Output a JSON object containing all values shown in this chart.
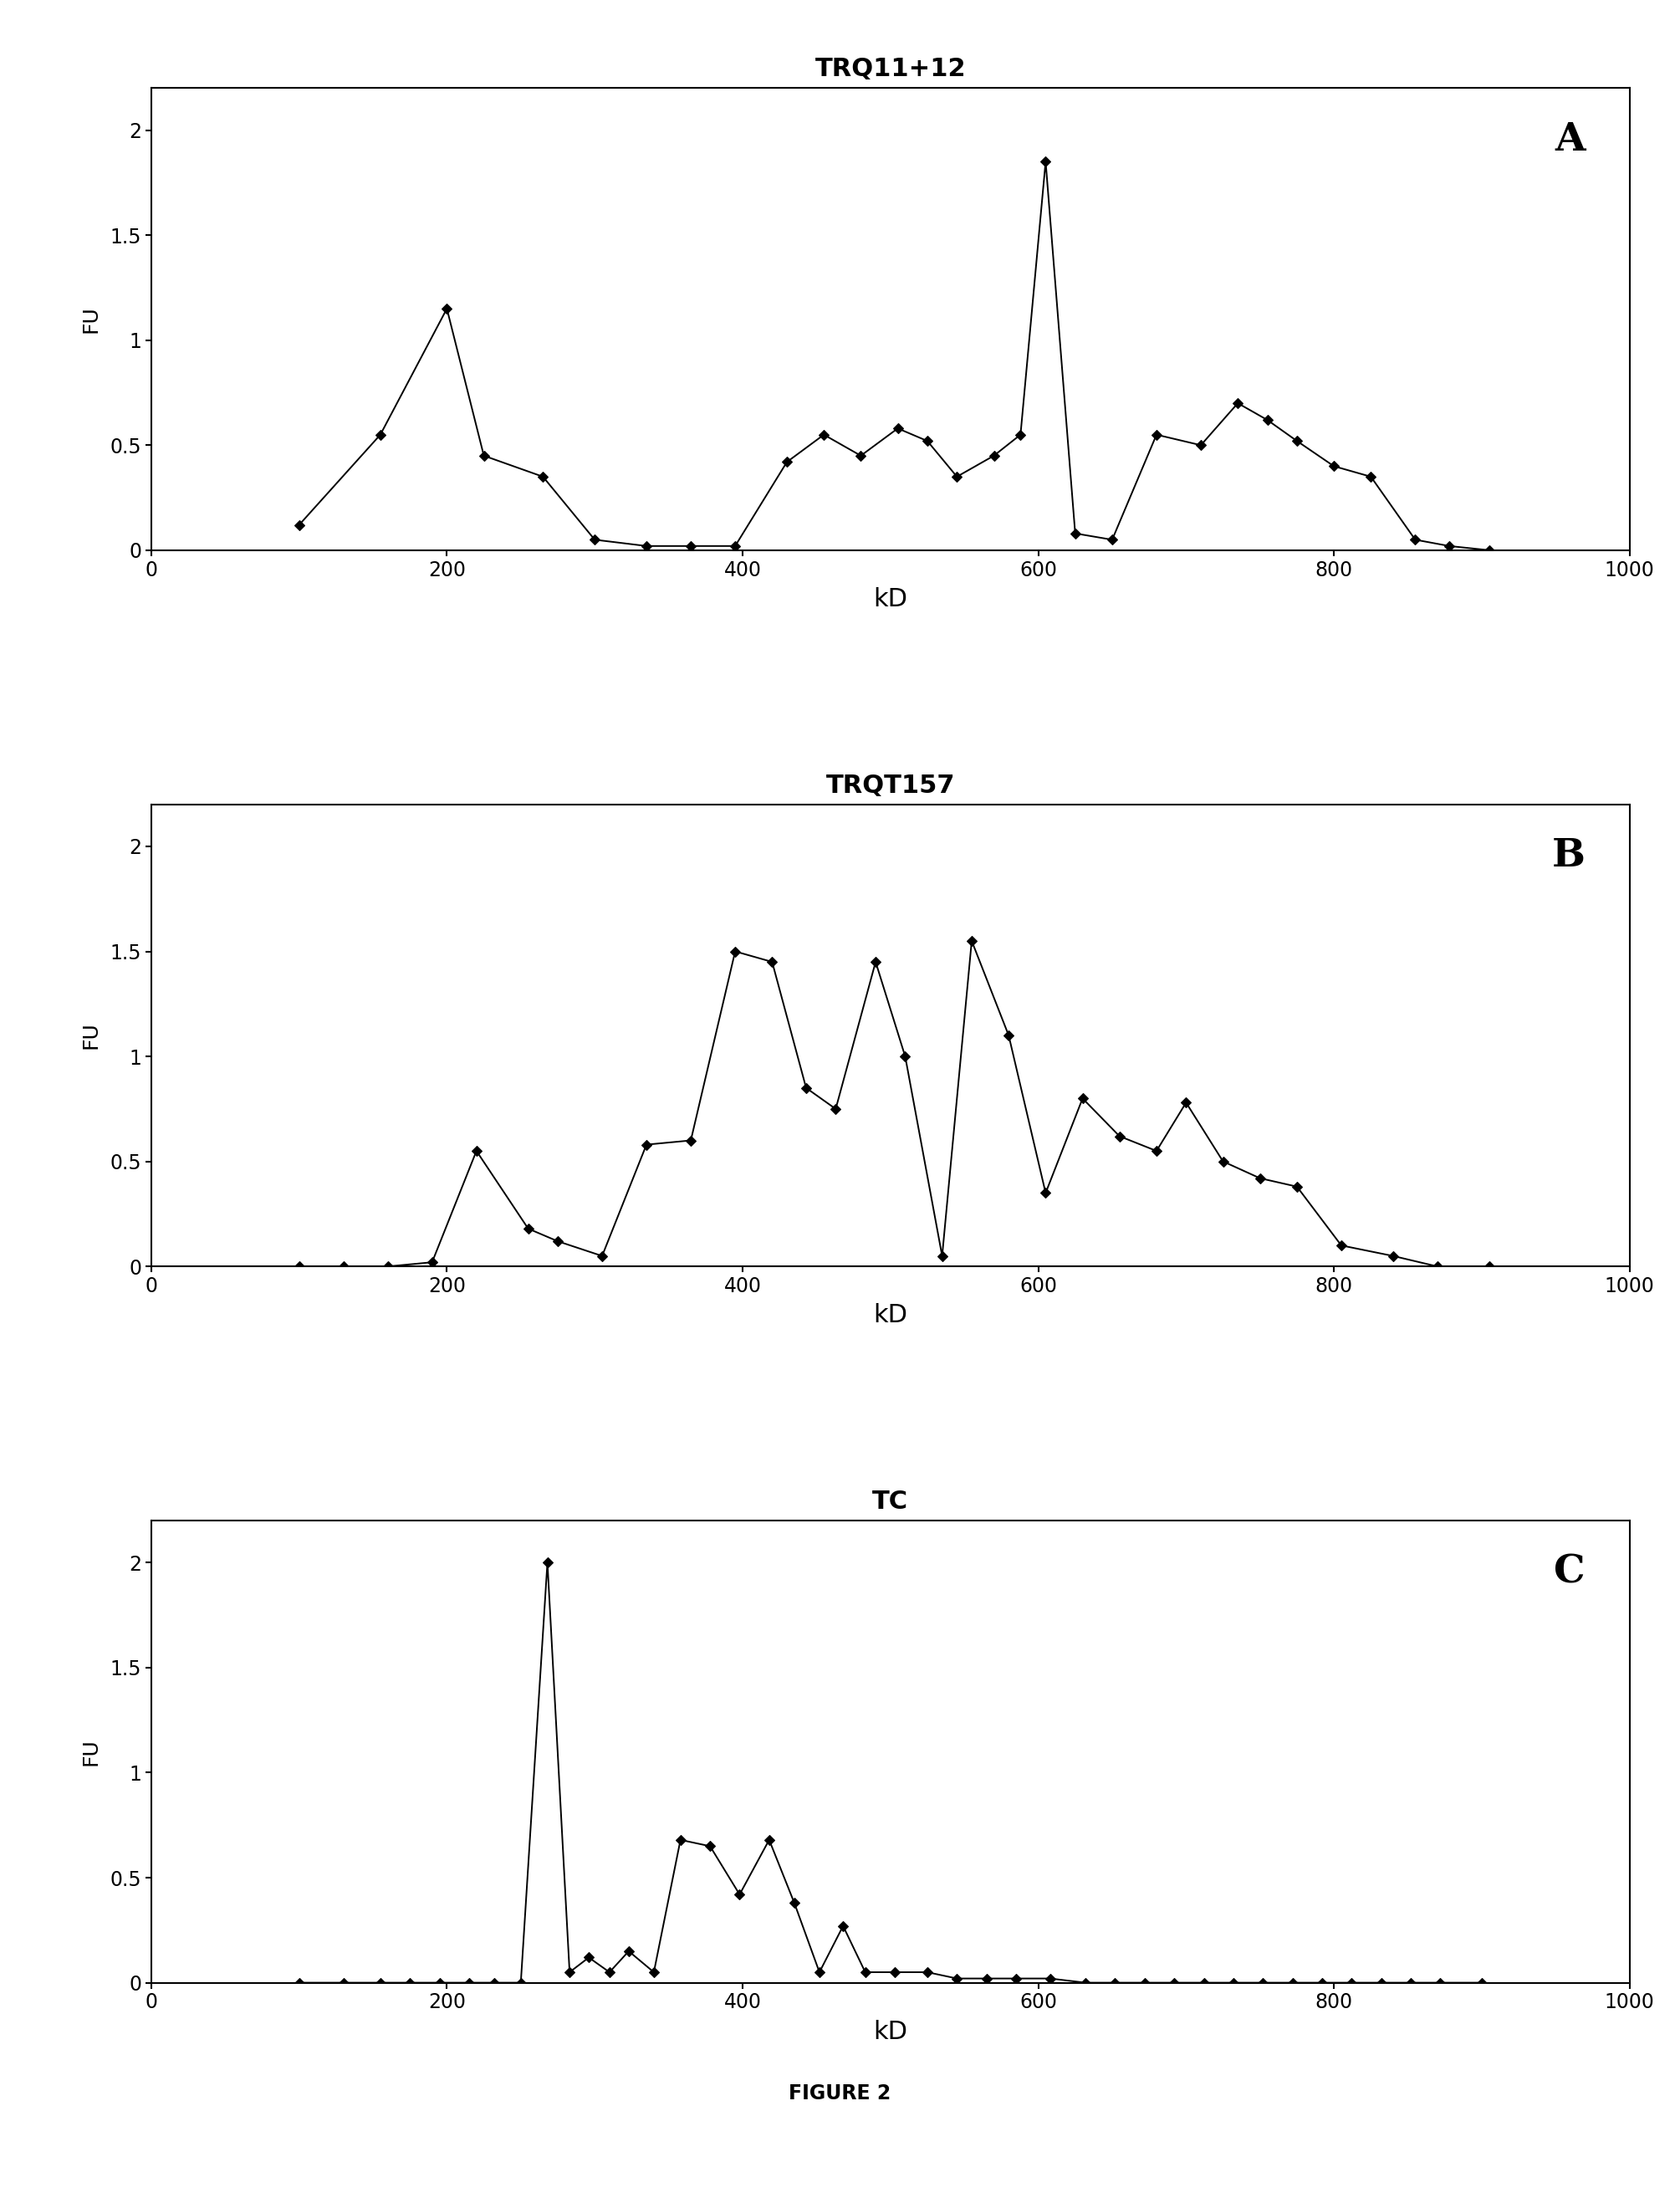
{
  "panel_A": {
    "title": "TRQ11+12",
    "label": "A",
    "x": [
      100,
      155,
      200,
      225,
      265,
      300,
      335,
      365,
      395,
      430,
      455,
      480,
      505,
      525,
      545,
      570,
      588,
      605,
      625,
      650,
      680,
      710,
      735,
      755,
      775,
      800,
      825,
      855,
      878,
      905
    ],
    "y": [
      0.12,
      0.55,
      1.15,
      0.45,
      0.35,
      0.05,
      0.02,
      0.02,
      0.02,
      0.42,
      0.55,
      0.45,
      0.58,
      0.52,
      0.35,
      0.45,
      0.55,
      1.85,
      0.08,
      0.05,
      0.55,
      0.5,
      0.7,
      0.62,
      0.52,
      0.4,
      0.35,
      0.05,
      0.02,
      0.0
    ]
  },
  "panel_B": {
    "title": "TRQT157",
    "label": "B",
    "x": [
      100,
      130,
      160,
      190,
      220,
      255,
      275,
      305,
      335,
      365,
      395,
      420,
      443,
      463,
      490,
      510,
      535,
      555,
      580,
      605,
      630,
      655,
      680,
      700,
      725,
      750,
      775,
      805,
      840,
      870,
      905
    ],
    "y": [
      0.0,
      0.0,
      0.0,
      0.02,
      0.55,
      0.18,
      0.12,
      0.05,
      0.58,
      0.6,
      1.5,
      1.45,
      0.85,
      0.75,
      1.45,
      1.0,
      0.05,
      1.55,
      1.1,
      0.35,
      0.8,
      0.62,
      0.55,
      0.78,
      0.5,
      0.42,
      0.38,
      0.1,
      0.05,
      0.0,
      0.0
    ]
  },
  "panel_C": {
    "title": "TC",
    "label": "C",
    "x": [
      100,
      130,
      155,
      175,
      195,
      215,
      232,
      250,
      268,
      283,
      296,
      310,
      323,
      340,
      358,
      378,
      398,
      418,
      435,
      452,
      468,
      483,
      503,
      525,
      545,
      565,
      585,
      608,
      632,
      652,
      672,
      692,
      712,
      732,
      752,
      772,
      792,
      812,
      832,
      852,
      872,
      900
    ],
    "y": [
      0.0,
      0.0,
      0.0,
      0.0,
      0.0,
      0.0,
      0.0,
      0.0,
      2.0,
      0.05,
      0.12,
      0.05,
      0.15,
      0.05,
      0.68,
      0.65,
      0.42,
      0.68,
      0.38,
      0.05,
      0.27,
      0.05,
      0.05,
      0.05,
      0.02,
      0.02,
      0.02,
      0.02,
      0.0,
      0.0,
      0.0,
      0.0,
      0.0,
      0.0,
      0.0,
      0.0,
      0.0,
      0.0,
      0.0,
      0.0,
      0.0,
      0.0
    ]
  },
  "xlabel": "kD",
  "ylabel": "FU",
  "xlim": [
    0,
    1000
  ],
  "ylim": [
    0,
    2.2
  ],
  "xticks": [
    0,
    200,
    400,
    600,
    800,
    1000
  ],
  "yticks": [
    0,
    0.5,
    1,
    1.5,
    2
  ],
  "ytick_labels": [
    "0",
    "0.5",
    "1",
    "1.5",
    "2"
  ],
  "figure_label": "FIGURE 2",
  "line_color": "black",
  "marker": "D",
  "marker_size": 6,
  "marker_color": "black",
  "bg_color": "white",
  "title_fontsize": 22,
  "tick_fontsize": 17,
  "xlabel_fontsize": 22,
  "ylabel_fontsize": 18,
  "panel_label_fontsize": 34
}
